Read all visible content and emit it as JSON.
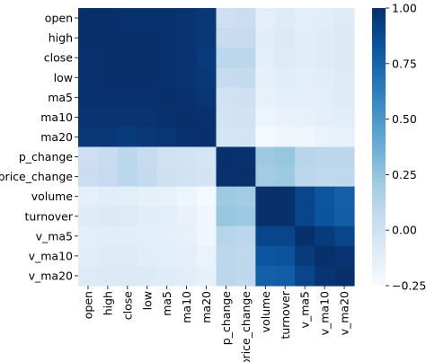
{
  "chart_data": {
    "type": "heatmap",
    "title": "",
    "xlabel": "",
    "ylabel": "",
    "labels": [
      "open",
      "high",
      "close",
      "low",
      "ma5",
      "ma10",
      "ma20",
      "p_change",
      "price_change",
      "volume",
      "turnover",
      "v_ma5",
      "v_ma10",
      "v_ma20"
    ],
    "matrix": [
      [
        1.0,
        1.0,
        0.99,
        0.99,
        0.99,
        0.98,
        0.96,
        0.02,
        0.03,
        -0.13,
        -0.1,
        -0.12,
        -0.11,
        -0.09
      ],
      [
        1.0,
        1.0,
        1.0,
        1.0,
        0.99,
        0.98,
        0.96,
        0.05,
        0.06,
        -0.11,
        -0.08,
        -0.11,
        -0.1,
        -0.08
      ],
      [
        0.99,
        1.0,
        1.0,
        1.0,
        0.99,
        0.98,
        0.95,
        0.1,
        0.1,
        -0.12,
        -0.09,
        -0.11,
        -0.1,
        -0.08
      ],
      [
        0.99,
        1.0,
        1.0,
        1.0,
        0.99,
        0.98,
        0.96,
        0.06,
        0.07,
        -0.14,
        -0.11,
        -0.12,
        -0.11,
        -0.09
      ],
      [
        0.99,
        0.99,
        0.99,
        0.99,
        1.0,
        0.99,
        0.97,
        0.0,
        0.01,
        -0.15,
        -0.12,
        -0.13,
        -0.12,
        -0.1
      ],
      [
        0.98,
        0.98,
        0.98,
        0.98,
        0.99,
        1.0,
        0.99,
        -0.02,
        -0.01,
        -0.19,
        -0.16,
        -0.15,
        -0.13,
        -0.11
      ],
      [
        0.96,
        0.96,
        0.95,
        0.96,
        0.97,
        0.99,
        1.0,
        -0.04,
        -0.03,
        -0.23,
        -0.2,
        -0.2,
        -0.17,
        -0.15
      ],
      [
        0.02,
        0.05,
        0.1,
        0.06,
        0.0,
        -0.02,
        -0.04,
        1.0,
        0.99,
        0.22,
        0.24,
        0.12,
        0.1,
        0.1
      ],
      [
        0.03,
        0.06,
        0.1,
        0.07,
        0.01,
        -0.01,
        -0.03,
        0.99,
        1.0,
        0.2,
        0.22,
        0.1,
        0.09,
        0.09
      ],
      [
        -0.13,
        -0.11,
        -0.12,
        -0.14,
        -0.15,
        -0.19,
        -0.23,
        0.22,
        0.2,
        1.0,
        1.0,
        0.9,
        0.82,
        0.77
      ],
      [
        -0.1,
        -0.08,
        -0.09,
        -0.11,
        -0.12,
        -0.16,
        -0.2,
        0.24,
        0.22,
        1.0,
        1.0,
        0.9,
        0.83,
        0.78
      ],
      [
        -0.12,
        -0.11,
        -0.11,
        -0.12,
        -0.13,
        -0.15,
        -0.2,
        0.12,
        0.1,
        0.9,
        0.9,
        1.0,
        0.95,
        0.9
      ],
      [
        -0.11,
        -0.1,
        -0.1,
        -0.11,
        -0.12,
        -0.13,
        -0.17,
        0.1,
        0.09,
        0.82,
        0.83,
        0.95,
        1.0,
        0.98
      ],
      [
        -0.09,
        -0.08,
        -0.08,
        -0.09,
        -0.1,
        -0.11,
        -0.15,
        0.1,
        0.09,
        0.77,
        0.78,
        0.9,
        0.98,
        1.0
      ]
    ],
    "colorbar": {
      "min": -0.25,
      "max": 1.0,
      "ticks": [
        "1.00",
        "0.75",
        "0.50",
        "0.25",
        "0.00",
        "−0.25"
      ],
      "colormap": "Blues",
      "color_stops": [
        "#f7fbff",
        "#deebf7",
        "#c6dbef",
        "#9ecae1",
        "#6baed6",
        "#4292c6",
        "#2171b5",
        "#08519c",
        "#08306b"
      ]
    },
    "grid": false,
    "legend": "colorbar-right"
  }
}
